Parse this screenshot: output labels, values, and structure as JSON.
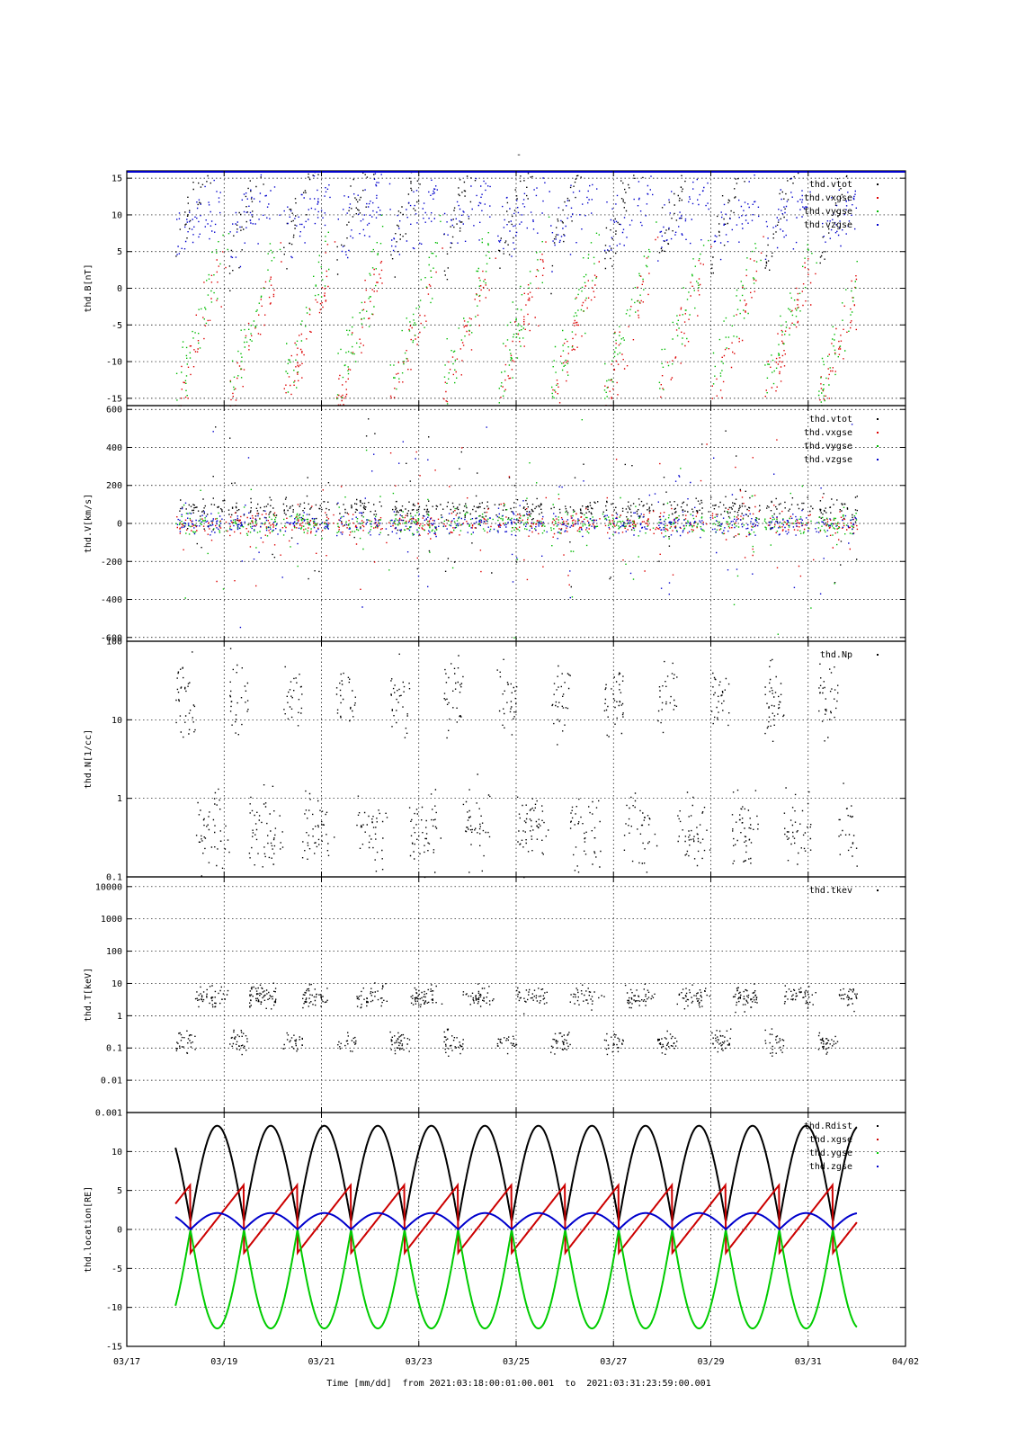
{
  "figure": {
    "title": "-",
    "x_label": "Time [mm/dd]  from 2021:03:18:00:01:00.001  to  2021:03:31:23:59:00.001",
    "x_ticks": [
      "03/17",
      "03/19",
      "03/21",
      "03/23",
      "03/25",
      "03/27",
      "03/29",
      "03/31",
      "04/02"
    ],
    "x_range_days": [
      "2021-03-17",
      "2021-04-02"
    ],
    "data_start": "2021-03-18",
    "data_end": "2021-03-31",
    "grid": true,
    "legend_position": "top-right"
  },
  "chart_data": [
    {
      "type": "scatter",
      "ylabel": "thd.B[nT]",
      "ylim": [
        -16,
        16
      ],
      "yticks": [
        "15",
        "10",
        "5",
        "0",
        "-5",
        "-10",
        "-15"
      ],
      "series": [
        {
          "name": "thd.vtot",
          "color": "#000000"
        },
        {
          "name": "thd.vxgse",
          "color": "#dd0000"
        },
        {
          "name": "thd.vygse",
          "color": "#00bb00"
        },
        {
          "name": "thd.vzgse",
          "color": "#0000cc"
        }
      ]
    },
    {
      "type": "scatter",
      "ylabel": "thd.V[km/s]",
      "ylim": [
        -620,
        620
      ],
      "yticks": [
        "600",
        "400",
        "200",
        "0",
        "-200",
        "-400",
        "-600"
      ],
      "series": [
        {
          "name": "thd.vtot",
          "color": "#000000"
        },
        {
          "name": "thd.vxgse",
          "color": "#dd0000"
        },
        {
          "name": "thd.vygse",
          "color": "#00bb00"
        },
        {
          "name": "thd.vzgse",
          "color": "#0000cc"
        }
      ]
    },
    {
      "type": "scatter",
      "scale": "log",
      "ylabel": "thd.N[1/cc]",
      "ylim": [
        0.1,
        100
      ],
      "yticks": [
        "100",
        "10",
        "1",
        "0.1"
      ],
      "series": [
        {
          "name": "thd.Np",
          "color": "#000000"
        }
      ]
    },
    {
      "type": "scatter",
      "scale": "log",
      "ylabel": "thd.T[keV]",
      "ylim": [
        0.001,
        20000
      ],
      "yticks": [
        "10000",
        "1000",
        "100",
        "10",
        "1",
        "0.1",
        "0.01",
        "0.001"
      ],
      "series": [
        {
          "name": "thd.tkev",
          "color": "#000000"
        }
      ]
    },
    {
      "type": "line",
      "ylabel": "thd.location[RE]",
      "ylim": [
        -15,
        15
      ],
      "yticks": [
        "10",
        "5",
        "0",
        "-5",
        "-10",
        "-15"
      ],
      "orbit_period_days": 1.1,
      "series": [
        {
          "name": "thd.Rdist",
          "color": "#000000",
          "min": 1,
          "max": 13.3
        },
        {
          "name": "thd.xgse",
          "color": "#cc0000",
          "min": -3,
          "max": 6.2
        },
        {
          "name": "thd.ygse",
          "color": "#00cc00",
          "min": -12.7,
          "max": 0
        },
        {
          "name": "thd.zgse",
          "color": "#0000cc",
          "min": 0,
          "max": 2.1
        }
      ]
    }
  ]
}
